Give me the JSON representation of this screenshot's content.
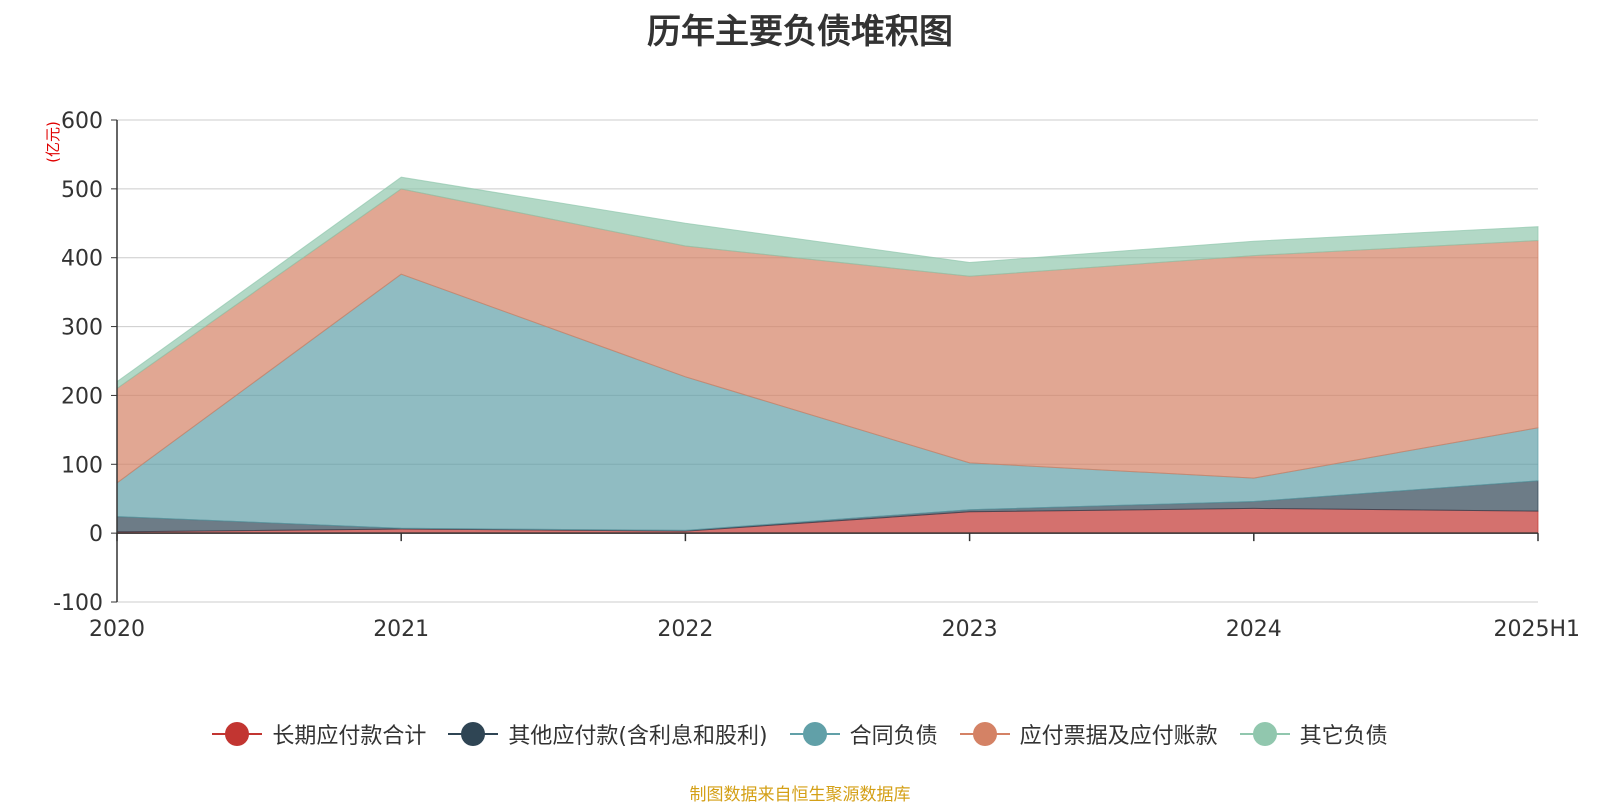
{
  "chart_data": {
    "type": "area",
    "stacked": true,
    "title": "历年主要负债堆积图",
    "unit_label": "(亿元)",
    "categories": [
      "2020",
      "2021",
      "2022",
      "2023",
      "2024",
      "2025H1"
    ],
    "ylim": [
      -100,
      600
    ],
    "yticks": [
      -100,
      0,
      100,
      200,
      300,
      400,
      500,
      600
    ],
    "grid": true,
    "legend_position": "bottom",
    "series": [
      {
        "name": "长期应付款合计",
        "color": "#c23531",
        "values": [
          2,
          6,
          3,
          31,
          36,
          32
        ]
      },
      {
        "name": "其他应付款(含利息和股利)",
        "color": "#2f4554",
        "values": [
          22,
          1,
          1,
          3,
          10,
          44
        ]
      },
      {
        "name": "合同负债",
        "color": "#61a0a8",
        "values": [
          49,
          369,
          223,
          68,
          34,
          77
        ]
      },
      {
        "name": "应付票据及应付账款",
        "color": "#d48265",
        "values": [
          137,
          124,
          190,
          271,
          323,
          272
        ]
      },
      {
        "name": "其它负债",
        "color": "#91c7ae",
        "values": [
          10,
          17,
          33,
          20,
          21,
          20
        ]
      }
    ]
  },
  "footer": {
    "source": "制图数据来自恒生聚源数据库"
  }
}
